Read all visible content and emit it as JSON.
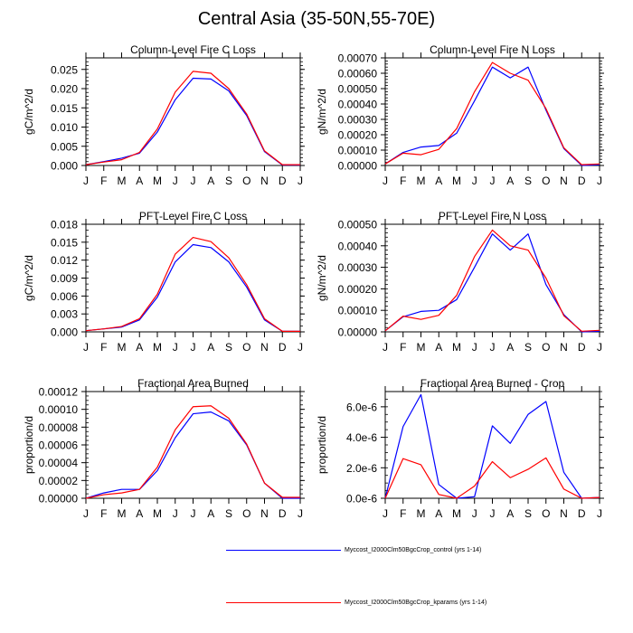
{
  "title": "Central Asia (35-50N,55-70E)",
  "colors": {
    "control": "#0000ff",
    "kparams": "#ff0000",
    "axis": "#000000"
  },
  "legend": [
    {
      "label": "Myccost_I2000Clm50BgcCrop_control (yrs 1-14)",
      "color": "#0000ff"
    },
    {
      "label": "Myccost_I2000Clm50BgcCrop_kparams (yrs 1-14)",
      "color": "#ff0000"
    }
  ],
  "chart_data": [
    {
      "type": "line",
      "title": "Column-Level Fire C Loss",
      "ylabel": "gC/m^2/d",
      "xlabel": "",
      "categories": [
        "J",
        "F",
        "M",
        "A",
        "M",
        "J",
        "J",
        "A",
        "S",
        "O",
        "N",
        "D",
        "J"
      ],
      "ylim": [
        0,
        0.028
      ],
      "yticks": [
        0,
        0.005,
        0.01,
        0.015,
        0.02,
        0.025
      ],
      "ytick_labels": [
        "0.000",
        "0.005",
        "0.010",
        "0.015",
        "0.020",
        "0.025"
      ],
      "yminor": 0.001,
      "series": [
        {
          "name": "Myccost_I2000Clm50BgcCrop_control (yrs 1-14)",
          "color": "#0000ff",
          "values": [
            0.0002,
            0.001,
            0.0019,
            0.0032,
            0.0087,
            0.0171,
            0.0227,
            0.0225,
            0.0194,
            0.013,
            0.0036,
            0.0001,
            0.0001
          ]
        },
        {
          "name": "Myccost_I2000Clm50BgcCrop_kparams (yrs 1-14)",
          "color": "#ff0000",
          "values": [
            0.0002,
            0.0009,
            0.0015,
            0.0034,
            0.0095,
            0.0191,
            0.0245,
            0.024,
            0.02,
            0.0134,
            0.0038,
            0.0002,
            0.0002
          ]
        }
      ]
    },
    {
      "type": "line",
      "title": "Column-Level Fire N Loss",
      "ylabel": "gN/m^2/d",
      "xlabel": "",
      "categories": [
        "J",
        "F",
        "M",
        "A",
        "M",
        "J",
        "J",
        "A",
        "S",
        "O",
        "N",
        "D",
        "J"
      ],
      "ylim": [
        0,
        0.0007
      ],
      "yticks": [
        0,
        0.0001,
        0.0002,
        0.0003,
        0.0004,
        0.0005,
        0.0006,
        0.0007
      ],
      "ytick_labels": [
        "0.00000",
        "0.00010",
        "0.00020",
        "0.00030",
        "0.00040",
        "0.00050",
        "0.00060",
        "0.00070"
      ],
      "yminor": 2e-05,
      "series": [
        {
          "name": "Myccost_I2000Clm50BgcCrop_control (yrs 1-14)",
          "color": "#0000ff",
          "values": [
            1e-05,
            8.5e-05,
            0.00012,
            0.00013,
            0.00021,
            0.00042,
            0.00064,
            0.00057,
            0.00064,
            0.00036,
            0.00011,
            0.0,
            5e-06
          ]
        },
        {
          "name": "Myccost_I2000Clm50BgcCrop_kparams (yrs 1-14)",
          "color": "#ff0000",
          "values": [
            1e-05,
            8e-05,
            7e-05,
            0.000105,
            0.00024,
            0.00048,
            0.00067,
            0.0006,
            0.000555,
            0.00037,
            0.000115,
            5e-06,
            1e-05
          ]
        }
      ]
    },
    {
      "type": "line",
      "title": "PFT-Level Fire C Loss",
      "ylabel": "gC/m^2/d",
      "xlabel": "",
      "categories": [
        "J",
        "F",
        "M",
        "A",
        "M",
        "J",
        "J",
        "A",
        "S",
        "O",
        "N",
        "D",
        "J"
      ],
      "ylim": [
        0,
        0.018
      ],
      "yticks": [
        0,
        0.003,
        0.006,
        0.009,
        0.012,
        0.015,
        0.018
      ],
      "ytick_labels": [
        "0.000",
        "0.003",
        "0.006",
        "0.009",
        "0.012",
        "0.015",
        "0.018"
      ],
      "yminor": 0.001,
      "series": [
        {
          "name": "Myccost_I2000Clm50BgcCrop_control (yrs 1-14)",
          "color": "#0000ff",
          "values": [
            0.0002,
            0.0005,
            0.0008,
            0.002,
            0.0058,
            0.0117,
            0.0146,
            0.0141,
            0.0117,
            0.0075,
            0.002,
            0.0001,
            0.0001
          ]
        },
        {
          "name": "Myccost_I2000Clm50BgcCrop_kparams (yrs 1-14)",
          "color": "#ff0000",
          "values": [
            0.0002,
            0.0005,
            0.0009,
            0.0022,
            0.0063,
            0.013,
            0.0158,
            0.0151,
            0.0124,
            0.0079,
            0.0022,
            0.0001,
            0.0001
          ]
        }
      ]
    },
    {
      "type": "line",
      "title": "PFT-Level Fire N Loss",
      "ylabel": "gN/m^2/d",
      "xlabel": "",
      "categories": [
        "J",
        "F",
        "M",
        "A",
        "M",
        "J",
        "J",
        "A",
        "S",
        "O",
        "N",
        "D",
        "J"
      ],
      "ylim": [
        0,
        0.0005
      ],
      "yticks": [
        0,
        0.0001,
        0.0002,
        0.0003,
        0.0004,
        0.0005
      ],
      "ytick_labels": [
        "0.00000",
        "0.00010",
        "0.00020",
        "0.00030",
        "0.00040",
        "0.00050"
      ],
      "yminor": 2e-05,
      "series": [
        {
          "name": "Myccost_I2000Clm50BgcCrop_control (yrs 1-14)",
          "color": "#0000ff",
          "values": [
            5e-06,
            7e-05,
            9.5e-05,
            0.0001,
            0.00015,
            0.0003,
            0.000455,
            0.00038,
            0.000455,
            0.00022,
            8e-05,
            0.0,
            3e-06
          ]
        },
        {
          "name": "Myccost_I2000Clm50BgcCrop_kparams (yrs 1-14)",
          "color": "#ff0000",
          "values": [
            5e-06,
            7.3e-05,
            5.8e-05,
            7.7e-05,
            0.00017,
            0.00035,
            0.000473,
            0.0004,
            0.00038,
            0.00025,
            7.5e-05,
            3e-06,
            7e-06
          ]
        }
      ]
    },
    {
      "type": "line",
      "title": "Fractional Area Burned",
      "ylabel": "proportion/d",
      "xlabel": "",
      "categories": [
        "J",
        "F",
        "M",
        "A",
        "M",
        "J",
        "J",
        "A",
        "S",
        "O",
        "N",
        "D",
        "J"
      ],
      "ylim": [
        0,
        0.00012
      ],
      "yticks": [
        0,
        2e-05,
        4e-05,
        6e-05,
        8e-05,
        0.0001,
        0.00012
      ],
      "ytick_labels": [
        "0.00000",
        "0.00002",
        "0.00004",
        "0.00006",
        "0.00008",
        "0.00010",
        "0.00012"
      ],
      "yminor": 5e-06,
      "series": [
        {
          "name": "Myccost_I2000Clm50BgcCrop_control (yrs 1-14)",
          "color": "#0000ff",
          "values": [
            0.0,
            6e-06,
            1e-05,
            1e-05,
            3.1e-05,
            6.8e-05,
            9.5e-05,
            9.7e-05,
            8.7e-05,
            6e-05,
            1.7e-05,
            0.0,
            0.0
          ]
        },
        {
          "name": "Myccost_I2000Clm50BgcCrop_kparams (yrs 1-14)",
          "color": "#ff0000",
          "values": [
            0.0,
            4e-06,
            6e-06,
            1e-05,
            3.5e-05,
            7.7e-05,
            0.000103,
            0.000104,
            9e-05,
            6.1e-05,
            1.7e-05,
            1e-06,
            1e-06
          ]
        }
      ]
    },
    {
      "type": "line",
      "title": "Fractional Area Burned - Crop",
      "ylabel": "proportion/d",
      "xlabel": "",
      "categories": [
        "J",
        "F",
        "M",
        "A",
        "M",
        "J",
        "J",
        "A",
        "S",
        "O",
        "N",
        "D",
        "J"
      ],
      "ylim": [
        0,
        7e-06
      ],
      "yticks": [
        0,
        2e-06,
        4e-06,
        6e-06
      ],
      "ytick_labels": [
        "0.0e-6",
        "2.0e-6",
        "4.0e-6",
        "6.0e-6"
      ],
      "yminor": 5e-07,
      "series": [
        {
          "name": "Myccost_I2000Clm50BgcCrop_control (yrs 1-14)",
          "color": "#0000ff",
          "values": [
            0.0,
            4.7e-06,
            6.8e-06,
            9e-07,
            0.0,
            1e-07,
            4.75e-06,
            3.6e-06,
            5.5e-06,
            6.35e-06,
            1.7e-06,
            0.0,
            5e-08
          ]
        },
        {
          "name": "Myccost_I2000Clm50BgcCrop_kparams (yrs 1-14)",
          "color": "#ff0000",
          "values": [
            0.0,
            2.6e-06,
            2.2e-06,
            2.5e-07,
            0.0,
            8e-07,
            2.4e-06,
            1.35e-06,
            1.9e-06,
            2.65e-06,
            6e-07,
            0.0,
            5e-08
          ]
        }
      ]
    }
  ]
}
